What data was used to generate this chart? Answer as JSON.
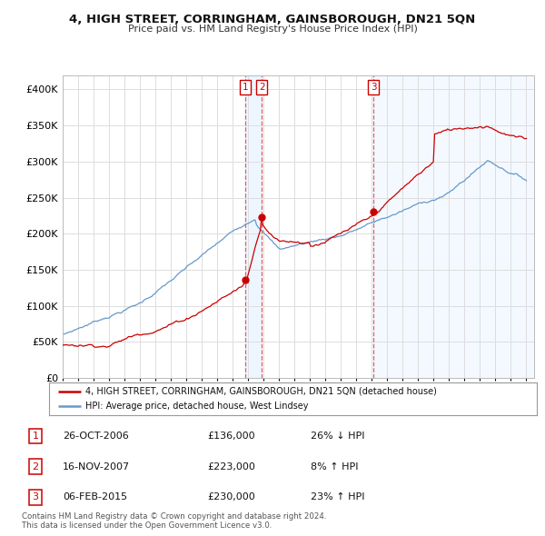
{
  "title": "4, HIGH STREET, CORRINGHAM, GAINSBOROUGH, DN21 5QN",
  "subtitle": "Price paid vs. HM Land Registry's House Price Index (HPI)",
  "xlim_start": 1995.0,
  "xlim_end": 2025.5,
  "ylim": [
    0,
    420000
  ],
  "yticks": [
    0,
    50000,
    100000,
    150000,
    200000,
    250000,
    300000,
    350000,
    400000
  ],
  "ytick_labels": [
    "£0",
    "£50K",
    "£100K",
    "£150K",
    "£200K",
    "£250K",
    "£300K",
    "£350K",
    "£400K"
  ],
  "sales": [
    {
      "label": "1",
      "date_num": 2006.82,
      "price": 136000,
      "pct": "26%",
      "direction": "↓",
      "date_str": "26-OCT-2006"
    },
    {
      "label": "2",
      "date_num": 2007.88,
      "price": 223000,
      "pct": "8%",
      "direction": "↑",
      "date_str": "16-NOV-2007"
    },
    {
      "label": "3",
      "date_num": 2015.1,
      "price": 230000,
      "pct": "23%",
      "direction": "↑",
      "date_str": "06-FEB-2015"
    }
  ],
  "legend_property_label": "4, HIGH STREET, CORRINGHAM, GAINSBOROUGH, DN21 5QN (detached house)",
  "legend_hpi_label": "HPI: Average price, detached house, West Lindsey",
  "footer": "Contains HM Land Registry data © Crown copyright and database right 2024.\nThis data is licensed under the Open Government Licence v3.0.",
  "property_color": "#cc0000",
  "hpi_color": "#6699cc",
  "hpi_fill_color": "#ddeeff",
  "background_color": "#ffffff",
  "grid_color": "#dddddd",
  "sale_vline_color": "#dd4444"
}
